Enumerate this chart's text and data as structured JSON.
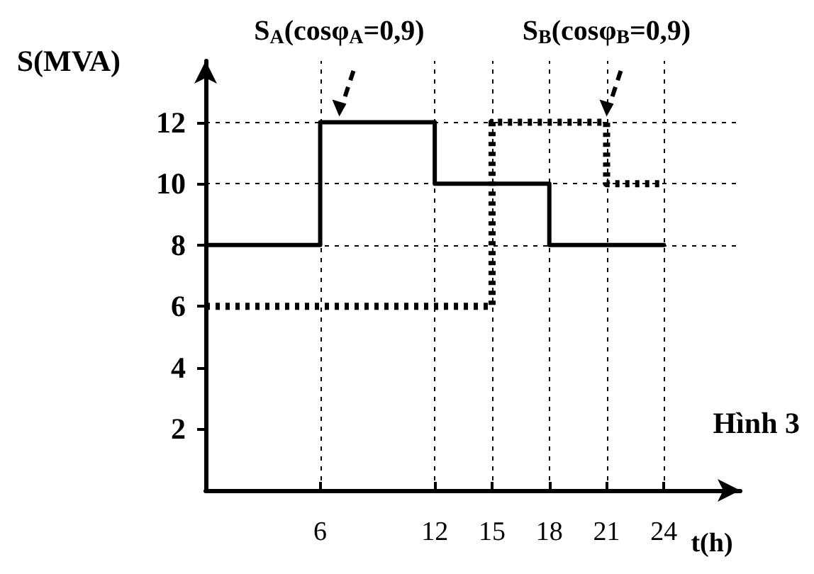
{
  "chart_data": {
    "type": "step",
    "xlabel": "t(h)",
    "ylabel": "S(MVA)",
    "xlim": [
      0,
      28
    ],
    "ylim": [
      0,
      14
    ],
    "xticks": [
      6,
      12,
      15,
      18,
      21,
      24
    ],
    "yticks": [
      2,
      4,
      6,
      8,
      10,
      12
    ],
    "grid": false,
    "legend": false,
    "marker": "none",
    "series": [
      {
        "name": "S$_{A}$(cosφ$_{A}$=0,9)",
        "color": "#000000",
        "line_style": "solid",
        "x": [
          0,
          6,
          12,
          18,
          24
        ],
        "values": [
          8,
          12,
          10,
          8,
          8
        ]
      },
      {
        "name": "S$_{B}$(cosφ$_{B}$=0,9)",
        "color": "#000000",
        "line_style": "dotted",
        "x": [
          0,
          15,
          21,
          24
        ],
        "values": [
          6,
          12,
          10,
          10
        ]
      }
    ],
    "ref_lines": [
      {
        "axis": "y",
        "value": 12,
        "line_style": "dotted",
        "color": "#000000"
      },
      {
        "axis": "y",
        "value": 10,
        "line_style": "dotted",
        "color": "#000000"
      },
      {
        "axis": "y",
        "value": 8,
        "line_style": "dotted",
        "color": "#000000"
      },
      {
        "axis": "x",
        "value": 6,
        "line_style": "dotted",
        "color": "#000000"
      },
      {
        "axis": "x",
        "value": 12,
        "line_style": "dotted",
        "color": "#000000"
      },
      {
        "axis": "x",
        "value": 15,
        "line_style": "dotted",
        "color": "#000000"
      },
      {
        "axis": "x",
        "value": 18,
        "line_style": "dotted",
        "color": "#000000"
      },
      {
        "axis": "x",
        "value": 21,
        "line_style": "dotted",
        "color": "#000000"
      },
      {
        "axis": "x",
        "value": 24,
        "line_style": "dotted",
        "color": "#000000"
      }
    ],
    "annotations": [
      "Hình 3"
    ]
  }
}
